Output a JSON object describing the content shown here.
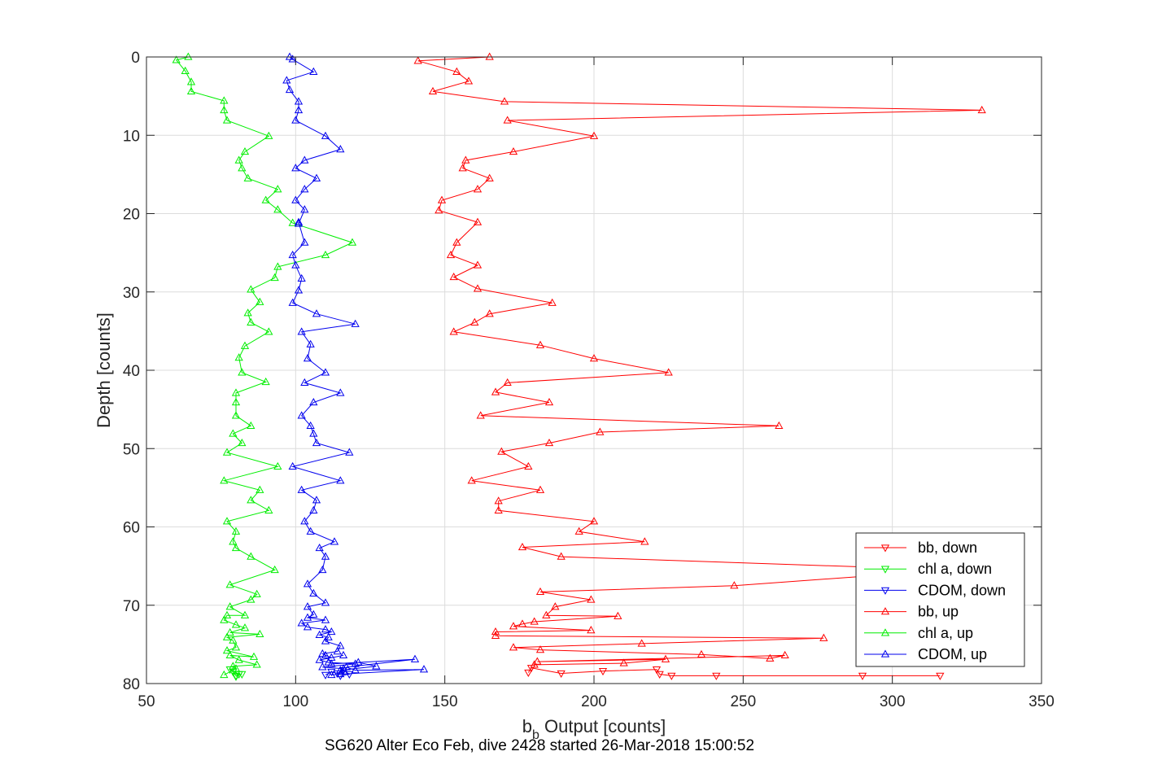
{
  "chart_data": {
    "type": "line",
    "title": "",
    "xlabel_main": "b",
    "xlabel_sub": "b",
    "xlabel_rest": " Output [counts]",
    "ylabel": "Depth [counts]",
    "footer": "SG620 Alter Eco Feb, dive 2428 started 26-Mar-2018 15:00:52",
    "xlim": [
      50,
      350
    ],
    "ylim": [
      0,
      80
    ],
    "y_reversed": true,
    "grid": true,
    "legend_position": "lower-right",
    "xticks": [
      "50",
      "100",
      "150",
      "200",
      "250",
      "300",
      "350"
    ],
    "yticks": [
      "0",
      "10",
      "20",
      "30",
      "40",
      "50",
      "60",
      "70",
      "80"
    ],
    "series": [
      {
        "name": "bb, down",
        "color": "#ff0000",
        "marker": "triangle-down",
        "x": [
          316,
          290,
          241,
          226,
          222,
          221,
          203,
          189,
          179,
          178
        ],
        "y": [
          79.0,
          79.0,
          79.0,
          79.0,
          78.8,
          78.2,
          78.4,
          78.7,
          78.0,
          78.6
        ]
      },
      {
        "name": "chl a, down",
        "color": "#00ee00",
        "marker": "triangle-down",
        "x": [
          82,
          80,
          79,
          78,
          81,
          80
        ],
        "y": [
          78.8,
          79.0,
          78.5,
          78.2,
          78.8,
          79.1
        ]
      },
      {
        "name": "CDOM, down",
        "color": "#0000ee",
        "marker": "triangle-down",
        "x": [
          110,
          112,
          114,
          116,
          118,
          115
        ],
        "y": [
          78.9,
          78.5,
          78.7,
          78.3,
          78.8,
          79.0
        ]
      },
      {
        "name": "bb, up",
        "color": "#ff0000",
        "marker": "triangle-up",
        "x": [
          165,
          141,
          154,
          158,
          146,
          170,
          330,
          171,
          200,
          173,
          157,
          156,
          165,
          161,
          149,
          148,
          161,
          154,
          152,
          161,
          153,
          161,
          186,
          165,
          160,
          153,
          182,
          200,
          225,
          171,
          167,
          185,
          162,
          262,
          202,
          185,
          169,
          178,
          159,
          182,
          168,
          168,
          200,
          195,
          217,
          176,
          189,
          320,
          247,
          182,
          199,
          187,
          184,
          208,
          180,
          176,
          173,
          199,
          167,
          167,
          277,
          216,
          173,
          182,
          236,
          259,
          264,
          181,
          224,
          210,
          180
        ],
        "y": [
          0.0,
          0.5,
          1.9,
          3.1,
          4.4,
          5.7,
          6.8,
          8.1,
          10.1,
          12.1,
          13.2,
          14.2,
          15.5,
          16.9,
          18.3,
          19.6,
          21.1,
          23.7,
          25.3,
          26.6,
          28.1,
          29.6,
          31.4,
          32.8,
          33.9,
          35.1,
          36.8,
          38.5,
          40.3,
          41.6,
          42.8,
          44.1,
          45.8,
          47.1,
          47.9,
          49.3,
          50.4,
          52.3,
          54.1,
          55.3,
          56.7,
          57.9,
          59.3,
          60.6,
          61.9,
          62.6,
          63.8,
          65.5,
          67.5,
          68.3,
          69.3,
          70.2,
          71.3,
          71.4,
          72.1,
          72.4,
          72.7,
          73.2,
          73.4,
          73.9,
          74.2,
          74.9,
          75.4,
          75.7,
          76.3,
          76.8,
          76.4,
          77.2,
          76.9,
          77.4,
          77.6
        ]
      },
      {
        "name": "chl a, up",
        "color": "#00ee00",
        "marker": "triangle-up",
        "x": [
          64,
          60,
          63,
          65,
          65,
          76,
          76,
          77,
          91,
          83,
          81,
          82,
          84,
          94,
          90,
          94,
          99,
          119,
          110,
          94,
          93,
          85,
          88,
          84,
          85,
          91,
          83,
          81,
          82,
          90,
          80,
          80,
          80,
          85,
          79,
          82,
          77,
          94,
          76,
          88,
          85,
          91,
          77,
          80,
          79,
          80,
          85,
          93,
          78,
          87,
          85,
          78,
          83,
          77,
          76,
          80,
          83,
          78,
          88,
          77,
          79,
          80,
          77,
          86,
          78,
          81,
          87,
          79,
          80,
          76
        ],
        "y": [
          0.0,
          0.4,
          1.8,
          3.2,
          4.4,
          5.6,
          6.8,
          8.1,
          10.1,
          12.1,
          13.2,
          14.2,
          15.5,
          16.9,
          18.3,
          19.5,
          21.2,
          23.7,
          25.3,
          26.8,
          28.2,
          29.7,
          31.3,
          32.7,
          33.9,
          35.1,
          36.9,
          38.4,
          40.3,
          41.5,
          42.9,
          44.1,
          45.8,
          47.1,
          48.1,
          49.3,
          50.5,
          52.3,
          54.1,
          55.3,
          56.6,
          57.9,
          59.3,
          60.6,
          61.9,
          62.7,
          63.8,
          65.5,
          67.4,
          68.6,
          69.3,
          70.2,
          71.3,
          71.3,
          71.9,
          72.5,
          72.9,
          73.5,
          73.7,
          74.1,
          74.5,
          75.4,
          75.8,
          76.6,
          76.4,
          77.0,
          77.6,
          77.8,
          78.1,
          78.9
        ]
      },
      {
        "name": "CDOM, up",
        "color": "#0000ee",
        "marker": "triangle-up",
        "x": [
          98,
          99,
          106,
          97,
          98,
          101,
          101,
          100,
          110,
          115,
          103,
          100,
          107,
          103,
          100,
          103,
          101,
          101,
          103,
          99,
          100,
          102,
          101,
          99,
          107,
          120,
          102,
          105,
          104,
          110,
          103,
          115,
          106,
          102,
          105,
          106,
          107,
          118,
          99,
          115,
          102,
          107,
          106,
          103,
          105,
          113,
          108,
          110,
          109,
          104,
          106,
          110,
          104,
          106,
          104,
          110,
          102,
          104,
          110,
          112,
          108,
          111,
          110,
          115,
          114,
          109,
          110,
          112,
          116,
          108,
          111,
          120,
          109,
          116,
          115,
          127,
          121,
          112,
          140,
          117,
          120,
          143,
          115,
          112
        ],
        "y": [
          0.0,
          0.3,
          1.9,
          3.0,
          4.2,
          5.7,
          6.8,
          8.1,
          10.1,
          11.8,
          13.2,
          14.2,
          15.5,
          16.9,
          18.3,
          19.5,
          21.3,
          21.1,
          23.7,
          25.3,
          26.6,
          28.3,
          29.8,
          31.4,
          32.8,
          34.1,
          35.1,
          36.7,
          38.5,
          40.3,
          41.6,
          42.9,
          44.1,
          45.8,
          47.1,
          48.1,
          49.3,
          50.5,
          52.3,
          54.1,
          55.3,
          56.6,
          57.9,
          59.3,
          60.6,
          61.9,
          62.7,
          63.8,
          65.5,
          67.3,
          68.5,
          69.7,
          70.2,
          71.2,
          71.6,
          71.9,
          72.3,
          72.8,
          73.1,
          73.4,
          73.8,
          74.1,
          74.6,
          75.2,
          75.9,
          76.2,
          76.4,
          76.7,
          76.4,
          77.0,
          77.3,
          77.5,
          77.9,
          78.1,
          78.3,
          77.8,
          77.3,
          77.5,
          76.9,
          77.9,
          78.3,
          78.2,
          78.8,
          78.9
        ]
      }
    ]
  }
}
